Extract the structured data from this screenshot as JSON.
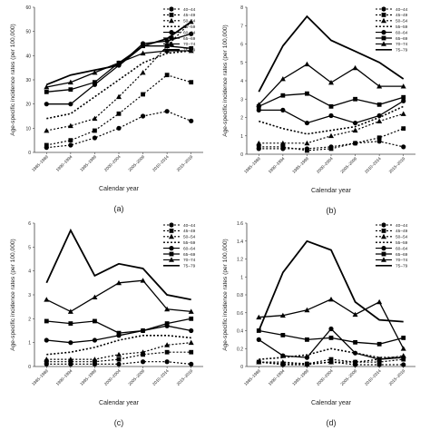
{
  "chart_data": [
    {
      "type": "line",
      "panel_label": "(a)",
      "xlabel": "Calendar year",
      "ylabel": "Age-specific incidence rates (per 100,000)",
      "categories": [
        "1985–1989",
        "1990–1994",
        "1995–1999",
        "2000–2004",
        "2005–2009",
        "2010–2014",
        "2015–2019"
      ],
      "ylim": [
        0,
        60
      ],
      "yticks": [
        0,
        10,
        20,
        30,
        40,
        50,
        60
      ],
      "grid": false,
      "legend_position": "top-right",
      "series": [
        {
          "name": "40–44",
          "values": [
            2,
            3,
            6,
            10,
            15,
            17,
            13
          ]
        },
        {
          "name": "45–49",
          "values": [
            3,
            5,
            9,
            16,
            24,
            32,
            29
          ]
        },
        {
          "name": "50–54",
          "values": [
            9,
            11,
            14,
            23,
            33,
            44,
            54
          ]
        },
        {
          "name": "55–59",
          "values": [
            14,
            16,
            23,
            30,
            37,
            41,
            42
          ]
        },
        {
          "name": "60–64",
          "values": [
            20,
            20,
            28,
            36,
            45,
            46,
            49
          ]
        },
        {
          "name": "65–69",
          "values": [
            25,
            26,
            29,
            37,
            44,
            44,
            43
          ]
        },
        {
          "name": "70–74",
          "values": [
            27,
            29,
            33,
            37,
            41,
            42,
            42
          ]
        },
        {
          "name": "75–79",
          "values": [
            28,
            32,
            34,
            36,
            44,
            47,
            54
          ]
        }
      ]
    },
    {
      "type": "line",
      "panel_label": "(b)",
      "xlabel": "Calendar year",
      "ylabel": "Age-specific incidence rates (per 100,000)",
      "categories": [
        "1985–1989",
        "1990–1994",
        "1995–1999",
        "2000–2004",
        "2005–2009",
        "2010–2014",
        "2015–2019"
      ],
      "ylim": [
        0,
        8
      ],
      "yticks": [
        0,
        1,
        2,
        3,
        4,
        5,
        6,
        7,
        8
      ],
      "grid": false,
      "legend_position": "top-right",
      "series": [
        {
          "name": "40–44",
          "values": [
            0.3,
            0.3,
            0.3,
            0.4,
            0.6,
            0.7,
            0.4
          ]
        },
        {
          "name": "45–49",
          "values": [
            0.4,
            0.4,
            0.2,
            0.3,
            0.6,
            0.9,
            1.4
          ]
        },
        {
          "name": "50–54",
          "values": [
            0.6,
            0.6,
            0.6,
            1.0,
            1.3,
            1.8,
            2.2
          ]
        },
        {
          "name": "55–59",
          "values": [
            1.8,
            1.4,
            1.1,
            1.3,
            1.5,
            2.0,
            2.6
          ]
        },
        {
          "name": "60–64",
          "values": [
            2.4,
            2.4,
            1.7,
            2.1,
            1.7,
            2.1,
            2.9
          ]
        },
        {
          "name": "65–69",
          "values": [
            2.6,
            3.2,
            3.3,
            2.6,
            3.0,
            2.7,
            3.1
          ]
        },
        {
          "name": "70–74",
          "values": [
            2.7,
            4.1,
            4.9,
            3.9,
            4.7,
            3.7,
            3.7
          ]
        },
        {
          "name": "75–79",
          "values": [
            3.4,
            5.9,
            7.5,
            6.2,
            5.6,
            5.0,
            4.1
          ]
        }
      ]
    },
    {
      "type": "line",
      "panel_label": "(c)",
      "xlabel": "Calendar year",
      "ylabel": "Age-specific incidence rates (per 100,000)",
      "categories": [
        "1985–1989",
        "1990–1994",
        "1995–1999",
        "2000–2004",
        "2005–2009",
        "2010–2014",
        "2015–2019"
      ],
      "ylim": [
        0,
        6
      ],
      "yticks": [
        0,
        1,
        2,
        3,
        4,
        5,
        6
      ],
      "grid": false,
      "legend_position": "top-right",
      "series": [
        {
          "name": "40–44",
          "values": [
            0.1,
            0.1,
            0.1,
            0.1,
            0.2,
            0.2,
            0.1
          ]
        },
        {
          "name": "45–49",
          "values": [
            0.2,
            0.2,
            0.2,
            0.3,
            0.5,
            0.6,
            0.6
          ]
        },
        {
          "name": "50–54",
          "values": [
            0.3,
            0.3,
            0.3,
            0.5,
            0.6,
            0.9,
            1.0
          ]
        },
        {
          "name": "55–59",
          "values": [
            0.5,
            0.6,
            0.8,
            1.1,
            1.3,
            1.3,
            1.2
          ]
        },
        {
          "name": "60–64",
          "values": [
            1.1,
            1.0,
            1.1,
            1.3,
            1.5,
            1.7,
            1.5
          ]
        },
        {
          "name": "65–69",
          "values": [
            1.9,
            1.8,
            1.9,
            1.4,
            1.5,
            1.8,
            2.0
          ]
        },
        {
          "name": "70–74",
          "values": [
            2.8,
            2.3,
            2.9,
            3.5,
            3.6,
            2.4,
            2.3
          ]
        },
        {
          "name": "75–79",
          "values": [
            3.5,
            5.7,
            3.8,
            4.3,
            4.1,
            3.0,
            2.8
          ]
        }
      ]
    },
    {
      "type": "line",
      "panel_label": "(d)",
      "xlabel": "Calendar year",
      "ylabel": "Age-specific incidence rates (per 100,000)",
      "categories": [
        "1985–1989",
        "1990–1994",
        "1995–1999",
        "2000–2004",
        "2005–2009",
        "2010–2014",
        "2015–2019"
      ],
      "ylim": [
        0,
        1.6
      ],
      "yticks": [
        0,
        0.2,
        0.4,
        0.6,
        0.8,
        1.0,
        1.2,
        1.4,
        1.6
      ],
      "grid": false,
      "legend_position": "top-right",
      "series": [
        {
          "name": "40–44",
          "values": [
            0.05,
            0.02,
            0.02,
            0.05,
            0.02,
            0.02,
            0.02
          ]
        },
        {
          "name": "45–49",
          "values": [
            0.05,
            0.03,
            0.03,
            0.08,
            0.05,
            0.05,
            0.08
          ]
        },
        {
          "name": "50–54",
          "values": [
            0.05,
            0.05,
            0.03,
            0.05,
            0.05,
            0.08,
            0.12
          ]
        },
        {
          "name": "55–59",
          "values": [
            0.08,
            0.1,
            0.13,
            0.2,
            0.15,
            0.1,
            0.1
          ]
        },
        {
          "name": "60–64",
          "values": [
            0.3,
            0.12,
            0.1,
            0.42,
            0.15,
            0.08,
            0.1
          ]
        },
        {
          "name": "65–69",
          "values": [
            0.4,
            0.35,
            0.3,
            0.32,
            0.27,
            0.25,
            0.32
          ]
        },
        {
          "name": "70–74",
          "values": [
            0.55,
            0.57,
            0.63,
            0.75,
            0.58,
            0.72,
            0.2
          ]
        },
        {
          "name": "75–79",
          "values": [
            0.4,
            1.05,
            1.4,
            1.3,
            0.72,
            0.52,
            0.5
          ]
        }
      ]
    }
  ],
  "series_styles": [
    {
      "dash": "2,2",
      "marker": "circle",
      "width": 1.2
    },
    {
      "dash": "2,2",
      "marker": "square",
      "width": 1.2
    },
    {
      "dash": "2,2",
      "marker": "triangle",
      "width": 1.2
    },
    {
      "dash": "2,2",
      "marker": "none",
      "width": 1.6
    },
    {
      "dash": "",
      "marker": "circle",
      "width": 1.3
    },
    {
      "dash": "",
      "marker": "square",
      "width": 1.3
    },
    {
      "dash": "",
      "marker": "triangle",
      "width": 1.3
    },
    {
      "dash": "",
      "marker": "none",
      "width": 1.8
    }
  ],
  "colors": {
    "line": "#000000",
    "axis": "#444444",
    "text": "#222222",
    "background": "#ffffff"
  }
}
